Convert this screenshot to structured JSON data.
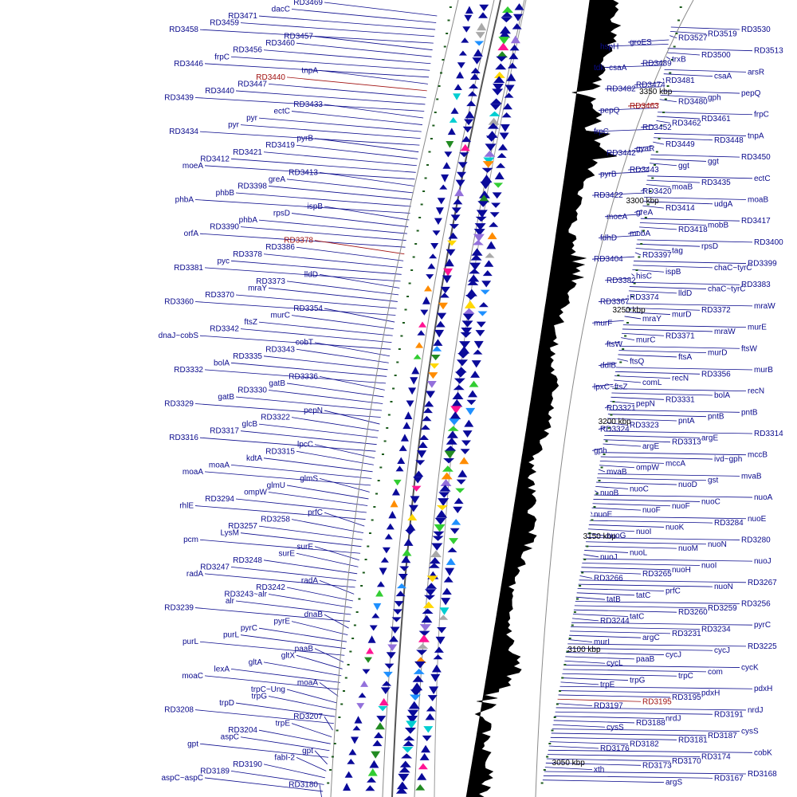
{
  "colors": {
    "label": "#0a0a8c",
    "leader": "#0a0a8c",
    "highlight": "#a01010",
    "ring": "#6e6e6e",
    "skew": "#000000",
    "feature_main": "#0a0a9a"
  },
  "ticks": [
    "3350 kbp",
    "3300 kbp",
    "3250 kbp",
    "3200 kbp",
    "3150 kbp",
    "3100 kbp",
    "3050 kbp"
  ],
  "left_labels": [
    {
      "t": "RD3469"
    },
    {
      "t": "dacC"
    },
    {
      "t": "RD3471"
    },
    {
      "t": "RD3459"
    },
    {
      "t": "RD3458"
    },
    {
      "t": "RD3457"
    },
    {
      "t": "RD3460"
    },
    {
      "t": "RD3456"
    },
    {
      "t": "frpC"
    },
    {
      "t": "RD3446"
    },
    {
      "t": "tnpA"
    },
    {
      "t": "RD3440",
      "hl": true
    },
    {
      "t": "RD3447"
    },
    {
      "t": "RD3440"
    },
    {
      "t": "RD3439"
    },
    {
      "t": "RD3433"
    },
    {
      "t": "ectC"
    },
    {
      "t": "pyr"
    },
    {
      "t": "pyr"
    },
    {
      "t": "RD3434"
    },
    {
      "t": "pyrB"
    },
    {
      "t": "RD3419"
    },
    {
      "t": "RD3421"
    },
    {
      "t": "RD3412"
    },
    {
      "t": "moeA"
    },
    {
      "t": "RD3413"
    },
    {
      "t": "greA"
    },
    {
      "t": "RD3398"
    },
    {
      "t": "phbB"
    },
    {
      "t": "phbA"
    },
    {
      "t": "ispB"
    },
    {
      "t": "rpsD"
    },
    {
      "t": "phbA"
    },
    {
      "t": "RD3390"
    },
    {
      "t": "orfA"
    },
    {
      "t": "RD3378",
      "hl": true
    },
    {
      "t": "RD3386"
    },
    {
      "t": "RD3378"
    },
    {
      "t": "pyc"
    },
    {
      "t": "RD3381"
    },
    {
      "t": "lldD"
    },
    {
      "t": "RD3373"
    },
    {
      "t": "mraY"
    },
    {
      "t": "RD3370"
    },
    {
      "t": "RD3360"
    },
    {
      "t": "RD3354"
    },
    {
      "t": "murC"
    },
    {
      "t": "ftsZ"
    },
    {
      "t": "RD3342"
    },
    {
      "t": "dnaJ~cobS"
    },
    {
      "t": "cobT"
    },
    {
      "t": "RD3343"
    },
    {
      "t": "RD3335"
    },
    {
      "t": "bolA"
    },
    {
      "t": "RD3332"
    },
    {
      "t": "RD3336"
    },
    {
      "t": "gatB"
    },
    {
      "t": "RD3330"
    },
    {
      "t": "gatB"
    },
    {
      "t": "RD3329"
    },
    {
      "t": "pepN"
    },
    {
      "t": "RD3322"
    },
    {
      "t": "glcB"
    },
    {
      "t": "RD3317"
    },
    {
      "t": "RD3316"
    },
    {
      "t": "lpcC"
    },
    {
      "t": "RD3315"
    },
    {
      "t": "kdtA"
    },
    {
      "t": "moaA"
    },
    {
      "t": "moaA"
    },
    {
      "t": "glmS"
    },
    {
      "t": "glmU"
    },
    {
      "t": "ompW"
    },
    {
      "t": "RD3294"
    },
    {
      "t": "rhlE"
    },
    {
      "t": "prfC"
    },
    {
      "t": "RD3258"
    },
    {
      "t": "RD3257"
    },
    {
      "t": "LysM"
    },
    {
      "t": "pcm"
    },
    {
      "t": "surE"
    },
    {
      "t": "surE"
    },
    {
      "t": "RD3248"
    },
    {
      "t": "RD3247"
    },
    {
      "t": "radA"
    },
    {
      "t": "radA"
    },
    {
      "t": "RD3242"
    },
    {
      "t": "RD3243~alr"
    },
    {
      "t": "alr"
    },
    {
      "t": "RD3239"
    },
    {
      "t": "dnaB"
    },
    {
      "t": "pyrE"
    },
    {
      "t": "pyrC"
    },
    {
      "t": "purL"
    },
    {
      "t": "purL"
    },
    {
      "t": "paaB"
    },
    {
      "t": "gltX"
    },
    {
      "t": "gltA"
    },
    {
      "t": "lexA"
    },
    {
      "t": "moaC"
    },
    {
      "t": "moaA"
    },
    {
      "t": "trpC~Ung"
    },
    {
      "t": "trpG"
    },
    {
      "t": "trpD"
    },
    {
      "t": "RD3208"
    },
    {
      "t": "RD3207"
    },
    {
      "t": "trpE"
    },
    {
      "t": "RD3204"
    },
    {
      "t": "aspC"
    },
    {
      "t": "gpt"
    },
    {
      "t": "gpt"
    },
    {
      "t": "fabI-2"
    },
    {
      "t": "RD3190"
    },
    {
      "t": "RD3189"
    },
    {
      "t": "aspC~aspC"
    },
    {
      "t": "RD3180"
    }
  ],
  "right_labels": [
    {
      "t": "RD3530"
    },
    {
      "t": "RD3519"
    },
    {
      "t": "RD3527"
    },
    {
      "t": "groES"
    },
    {
      "t": "hspH"
    },
    {
      "t": "RD3513"
    },
    {
      "t": "RD3500"
    },
    {
      "t": "trxB"
    },
    {
      "t": "RD3489"
    },
    {
      "t": "tdk~csaA"
    },
    {
      "t": "arsR"
    },
    {
      "t": "csaA"
    },
    {
      "t": "RD3481"
    },
    {
      "t": "RD3474"
    },
    {
      "t": "RD3482"
    },
    {
      "t": "pepQ"
    },
    {
      "t": "gph"
    },
    {
      "t": "RD3480"
    },
    {
      "t": "RD3463",
      "hl": true
    },
    {
      "t": "pepQ"
    },
    {
      "t": "frpC"
    },
    {
      "t": "RD3461"
    },
    {
      "t": "RD3462"
    },
    {
      "t": "RD3452"
    },
    {
      "t": "frpC"
    },
    {
      "t": "tnpA"
    },
    {
      "t": "RD3448"
    },
    {
      "t": "RD3449"
    },
    {
      "t": "gyaR"
    },
    {
      "t": "RD3442"
    },
    {
      "t": "RD3450"
    },
    {
      "t": "ggt"
    },
    {
      "t": "ggt"
    },
    {
      "t": "RD3443"
    },
    {
      "t": "pyrB"
    },
    {
      "t": "ectC"
    },
    {
      "t": "RD3435"
    },
    {
      "t": "moaB"
    },
    {
      "t": "RD3420"
    },
    {
      "t": "RD3422"
    },
    {
      "t": "moaB"
    },
    {
      "t": "udgA"
    },
    {
      "t": "RD3414"
    },
    {
      "t": "greA"
    },
    {
      "t": "moeA"
    },
    {
      "t": "RD3417"
    },
    {
      "t": "mobB"
    },
    {
      "t": "RD3418"
    },
    {
      "t": "mobA"
    },
    {
      "t": "fdhD"
    },
    {
      "t": "RD3400"
    },
    {
      "t": "rpsD"
    },
    {
      "t": "tag"
    },
    {
      "t": "RD3397"
    },
    {
      "t": "RD3404"
    },
    {
      "t": "RD3399"
    },
    {
      "t": "chaC~tyrC"
    },
    {
      "t": "ispB"
    },
    {
      "t": "hisC"
    },
    {
      "t": "RD3382"
    },
    {
      "t": "RD3383"
    },
    {
      "t": "chaC~tyrC"
    },
    {
      "t": "lldD"
    },
    {
      "t": "RD3374"
    },
    {
      "t": "RD3367"
    },
    {
      "t": "mraW"
    },
    {
      "t": "RD3372"
    },
    {
      "t": "murD"
    },
    {
      "t": "mraY"
    },
    {
      "t": "murF"
    },
    {
      "t": "murE"
    },
    {
      "t": "mraW"
    },
    {
      "t": "RD3371"
    },
    {
      "t": "murC"
    },
    {
      "t": "ftsW"
    },
    {
      "t": "ftsW"
    },
    {
      "t": "murD"
    },
    {
      "t": "ftsA"
    },
    {
      "t": "ftsQ"
    },
    {
      "t": "ddlB"
    },
    {
      "t": "murB"
    },
    {
      "t": "RD3356"
    },
    {
      "t": "recN"
    },
    {
      "t": "comL"
    },
    {
      "t": "lpxC~ftsZ"
    },
    {
      "t": "recN"
    },
    {
      "t": "bolA"
    },
    {
      "t": "RD3331"
    },
    {
      "t": "pepN"
    },
    {
      "t": "RD3321"
    },
    {
      "t": "pntB"
    },
    {
      "t": "pntB"
    },
    {
      "t": "pntA"
    },
    {
      "t": "RD3323"
    },
    {
      "t": "RD3324"
    },
    {
      "t": "RD3314"
    },
    {
      "t": "argE"
    },
    {
      "t": "RD3313"
    },
    {
      "t": "argE"
    },
    {
      "t": "gph"
    },
    {
      "t": "mccB"
    },
    {
      "t": "ivd~gph"
    },
    {
      "t": "mccA"
    },
    {
      "t": "ompW"
    },
    {
      "t": "mvaB"
    },
    {
      "t": "mvaB"
    },
    {
      "t": "gst"
    },
    {
      "t": "nuoD"
    },
    {
      "t": "nuoC"
    },
    {
      "t": "nuoB"
    },
    {
      "t": "nuoA"
    },
    {
      "t": "nuoC"
    },
    {
      "t": "nuoF"
    },
    {
      "t": "nuoF"
    },
    {
      "t": "nuoE"
    },
    {
      "t": "nuoE"
    },
    {
      "t": "RD3284"
    },
    {
      "t": "nuoK"
    },
    {
      "t": "nuoI"
    },
    {
      "t": "nuoG"
    },
    {
      "t": "RD3280"
    },
    {
      "t": "nuoN"
    },
    {
      "t": "nuoM"
    },
    {
      "t": "nuoL"
    },
    {
      "t": "nuoJ"
    },
    {
      "t": "nuoJ"
    },
    {
      "t": "nuoI"
    },
    {
      "t": "nuoH"
    },
    {
      "t": "RD3265"
    },
    {
      "t": "RD3266"
    },
    {
      "t": "RD3267"
    },
    {
      "t": "nuoN"
    },
    {
      "t": "prfC"
    },
    {
      "t": "tatC"
    },
    {
      "t": "tatB"
    },
    {
      "t": "RD3256"
    },
    {
      "t": "RD3259"
    },
    {
      "t": "RD3260"
    },
    {
      "t": "tatC"
    },
    {
      "t": "RD3244"
    },
    {
      "t": "pyrC"
    },
    {
      "t": "RD3234"
    },
    {
      "t": "RD3231"
    },
    {
      "t": "argC"
    },
    {
      "t": "murI"
    },
    {
      "t": "RD3225"
    },
    {
      "t": "cycJ"
    },
    {
      "t": "cycJ"
    },
    {
      "t": "paaB"
    },
    {
      "t": "cycL"
    },
    {
      "t": "cycK"
    },
    {
      "t": "com"
    },
    {
      "t": "trpC"
    },
    {
      "t": "trpG"
    },
    {
      "t": "trpE"
    },
    {
      "t": "pdxH"
    },
    {
      "t": "pdxH"
    },
    {
      "t": "RD3195"
    },
    {
      "t": "RD3195",
      "hl": true
    },
    {
      "t": "RD3197"
    },
    {
      "t": "nrdJ"
    },
    {
      "t": "RD3191"
    },
    {
      "t": "nrdJ"
    },
    {
      "t": "RD3188"
    },
    {
      "t": "cysS"
    },
    {
      "t": "cysS"
    },
    {
      "t": "RD3187"
    },
    {
      "t": "RD3181"
    },
    {
      "t": "RD3182"
    },
    {
      "t": "RD3176"
    },
    {
      "t": "cobK"
    },
    {
      "t": "RD3174"
    },
    {
      "t": "RD3170"
    },
    {
      "t": "RD3173"
    },
    {
      "t": "xth"
    },
    {
      "t": "RD3168"
    },
    {
      "t": "RD3167"
    },
    {
      "t": "argS"
    }
  ]
}
